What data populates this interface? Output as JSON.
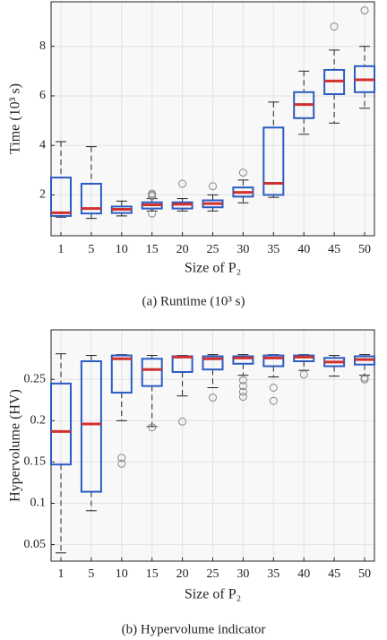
{
  "chart_data": [
    {
      "type": "box",
      "y_label": "Time (10³ s)",
      "x_label": "Size of P₂",
      "caption": "(a) Runtime (10³ s)",
      "categories": [
        "1",
        "5",
        "10",
        "15",
        "20",
        "25",
        "30",
        "35",
        "40",
        "45",
        "50"
      ],
      "ylim": [
        0.35,
        9.8
      ],
      "yticks": [
        2,
        4,
        6,
        8
      ],
      "grid": true,
      "box_color": "#2b5cc2",
      "median_color": "#d03030",
      "whisker_color": "#222222",
      "outlier_color": "#888888",
      "boxes": [
        {
          "min": 1.1,
          "q1": 1.15,
          "median": 1.28,
          "q3": 2.7,
          "max": 4.15,
          "outliers": []
        },
        {
          "min": 1.05,
          "q1": 1.25,
          "median": 1.45,
          "q3": 2.45,
          "max": 3.95,
          "outliers": []
        },
        {
          "min": 1.15,
          "q1": 1.27,
          "median": 1.42,
          "q3": 1.53,
          "max": 1.75,
          "outliers": []
        },
        {
          "min": 1.35,
          "q1": 1.45,
          "median": 1.6,
          "q3": 1.7,
          "max": 1.85,
          "outliers": [
            2.05,
            2.0,
            1.95,
            1.25
          ]
        },
        {
          "min": 1.35,
          "q1": 1.45,
          "median": 1.62,
          "q3": 1.7,
          "max": 1.85,
          "outliers": [
            2.45
          ]
        },
        {
          "min": 1.35,
          "q1": 1.5,
          "median": 1.65,
          "q3": 1.78,
          "max": 2.0,
          "outliers": [
            2.35
          ]
        },
        {
          "min": 1.68,
          "q1": 1.93,
          "median": 2.1,
          "q3": 2.3,
          "max": 2.6,
          "outliers": [
            2.9
          ]
        },
        {
          "min": 1.9,
          "q1": 2.0,
          "median": 2.47,
          "q3": 4.72,
          "max": 5.75,
          "outliers": []
        },
        {
          "min": 4.45,
          "q1": 5.1,
          "median": 5.65,
          "q3": 6.15,
          "max": 7.0,
          "outliers": []
        },
        {
          "min": 4.9,
          "q1": 6.07,
          "median": 6.6,
          "q3": 7.05,
          "max": 7.85,
          "outliers": [
            8.8
          ]
        },
        {
          "min": 5.5,
          "q1": 6.15,
          "median": 6.65,
          "q3": 7.2,
          "max": 8.0,
          "outliers": [
            9.45
          ]
        }
      ]
    },
    {
      "type": "box",
      "y_label": "Hypervolume (HV)",
      "x_label": "Size of P₂",
      "caption": "(b) Hypervolume indicator",
      "categories": [
        "1",
        "5",
        "10",
        "15",
        "20",
        "25",
        "30",
        "35",
        "40",
        "45",
        "50"
      ],
      "ylim": [
        0.03,
        0.31
      ],
      "yticks": [
        0.05,
        0.1,
        0.15,
        0.2,
        0.25
      ],
      "grid": true,
      "box_color": "#2b5cc2",
      "median_color": "#d03030",
      "whisker_color": "#222222",
      "outlier_color": "#888888",
      "boxes": [
        {
          "min": 0.04,
          "q1": 0.147,
          "median": 0.187,
          "q3": 0.245,
          "max": 0.281,
          "outliers": []
        },
        {
          "min": 0.091,
          "q1": 0.114,
          "median": 0.196,
          "q3": 0.272,
          "max": 0.279,
          "outliers": []
        },
        {
          "min": 0.2,
          "q1": 0.234,
          "median": 0.275,
          "q3": 0.279,
          "max": 0.28,
          "outliers": [
            0.155,
            0.148
          ]
        },
        {
          "min": 0.193,
          "q1": 0.242,
          "median": 0.262,
          "q3": 0.275,
          "max": 0.279,
          "outliers": [
            0.192
          ]
        },
        {
          "min": 0.23,
          "q1": 0.259,
          "median": 0.277,
          "q3": 0.278,
          "max": 0.279,
          "outliers": [
            0.199
          ]
        },
        {
          "min": 0.24,
          "q1": 0.262,
          "median": 0.275,
          "q3": 0.278,
          "max": 0.28,
          "outliers": [
            0.228
          ]
        },
        {
          "min": 0.255,
          "q1": 0.269,
          "median": 0.276,
          "q3": 0.278,
          "max": 0.28,
          "outliers": [
            0.249,
            0.242,
            0.235,
            0.229
          ]
        },
        {
          "min": 0.253,
          "q1": 0.266,
          "median": 0.276,
          "q3": 0.279,
          "max": 0.28,
          "outliers": [
            0.24,
            0.224
          ]
        },
        {
          "min": 0.261,
          "q1": 0.272,
          "median": 0.277,
          "q3": 0.279,
          "max": 0.28,
          "outliers": [
            0.256
          ]
        },
        {
          "min": 0.254,
          "q1": 0.266,
          "median": 0.271,
          "q3": 0.276,
          "max": 0.279,
          "outliers": []
        },
        {
          "min": 0.255,
          "q1": 0.268,
          "median": 0.274,
          "q3": 0.278,
          "max": 0.28,
          "outliers": [
            0.252,
            0.25
          ]
        }
      ]
    }
  ]
}
